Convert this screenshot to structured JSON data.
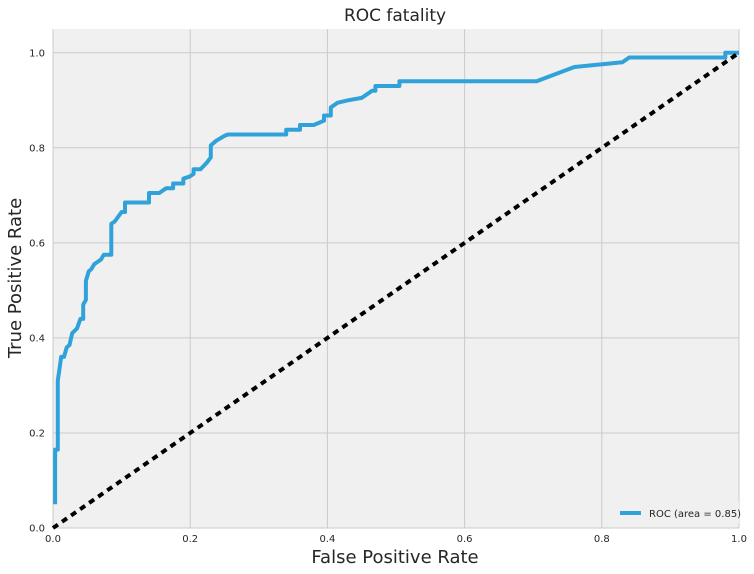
{
  "chart_data": {
    "type": "line",
    "title": "ROC fatality",
    "xlabel": "False Positive Rate",
    "ylabel": "True Positive Rate",
    "xlim": [
      0.0,
      1.0
    ],
    "ylim": [
      0.0,
      1.05
    ],
    "xticks": [
      "0.0",
      "0.2",
      "0.4",
      "0.6",
      "0.8",
      "1.0"
    ],
    "yticks": [
      "0.0",
      "0.2",
      "0.4",
      "0.6",
      "0.8",
      "1.0"
    ],
    "grid": true,
    "legend_position": "lower-right",
    "series": [
      {
        "name": "ROC (area = 0.85)",
        "color": "#30a2da",
        "style": "solid",
        "x": [
          0.003,
          0.003,
          0.007,
          0.007,
          0.012,
          0.016,
          0.02,
          0.024,
          0.028,
          0.035,
          0.04,
          0.044,
          0.044,
          0.048,
          0.048,
          0.052,
          0.056,
          0.056,
          0.06,
          0.065,
          0.07,
          0.074,
          0.08,
          0.085,
          0.085,
          0.09,
          0.1,
          0.105,
          0.105,
          0.14,
          0.14,
          0.155,
          0.165,
          0.175,
          0.175,
          0.19,
          0.19,
          0.2,
          0.205,
          0.205,
          0.215,
          0.225,
          0.23,
          0.23,
          0.238,
          0.25,
          0.255,
          0.34,
          0.34,
          0.36,
          0.36,
          0.38,
          0.395,
          0.395,
          0.405,
          0.405,
          0.415,
          0.43,
          0.45,
          0.46,
          0.465,
          0.47,
          0.47,
          0.505,
          0.505,
          0.705,
          0.76,
          0.83,
          0.835,
          0.84,
          0.98,
          0.98,
          1.0
        ],
        "y": [
          0.05,
          0.165,
          0.165,
          0.31,
          0.36,
          0.36,
          0.38,
          0.385,
          0.41,
          0.42,
          0.44,
          0.44,
          0.47,
          0.48,
          0.52,
          0.54,
          0.545,
          0.545,
          0.555,
          0.56,
          0.565,
          0.575,
          0.575,
          0.575,
          0.64,
          0.645,
          0.665,
          0.665,
          0.685,
          0.685,
          0.705,
          0.705,
          0.715,
          0.715,
          0.725,
          0.725,
          0.735,
          0.74,
          0.745,
          0.755,
          0.755,
          0.77,
          0.78,
          0.805,
          0.815,
          0.825,
          0.828,
          0.828,
          0.838,
          0.838,
          0.848,
          0.848,
          0.857,
          0.868,
          0.868,
          0.885,
          0.895,
          0.9,
          0.905,
          0.915,
          0.92,
          0.92,
          0.93,
          0.93,
          0.94,
          0.94,
          0.97,
          0.98,
          0.985,
          0.99,
          0.99,
          1.0,
          1.0
        ]
      },
      {
        "color": "#000000",
        "style": "dotted",
        "x": [
          0.0,
          1.0
        ],
        "y": [
          0.0,
          1.0
        ]
      }
    ]
  }
}
